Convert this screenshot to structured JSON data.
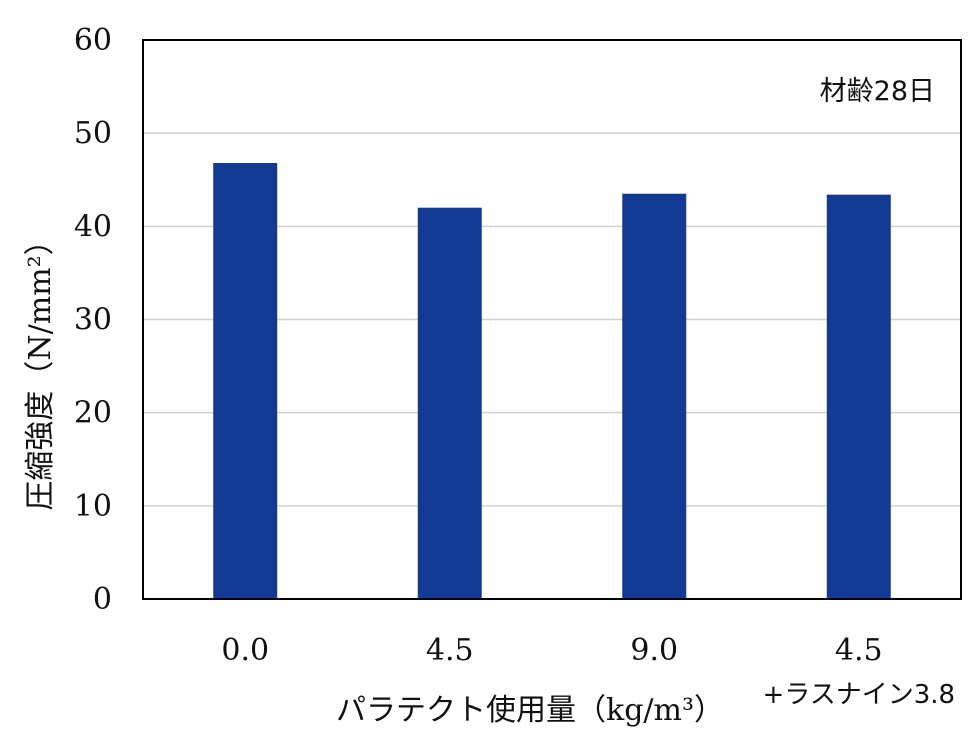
{
  "chart_data": {
    "type": "bar",
    "categories": [
      "0.0",
      "4.5",
      "9.0",
      "4.5"
    ],
    "category_sublabels": [
      "",
      "",
      "",
      "+ラスナイン3.8"
    ],
    "values": [
      46.8,
      42.0,
      43.5,
      43.4
    ],
    "series": [
      {
        "values": [
          46.8,
          42.0,
          43.5,
          43.4
        ],
        "color": "#123a93"
      }
    ],
    "title": "",
    "annotation": "材齢28日",
    "xlabel": "パラテクト使用量（kg/m³）",
    "ylabel": "圧縮強度（N/mm²）",
    "ylim": [
      0,
      60
    ],
    "yticks": [
      0,
      10,
      20,
      30,
      40,
      50,
      60
    ],
    "grid": true,
    "legend": "none",
    "colors": {
      "bar": "#123a93",
      "grid": "#d0d0d0",
      "axis": "#000000"
    }
  }
}
